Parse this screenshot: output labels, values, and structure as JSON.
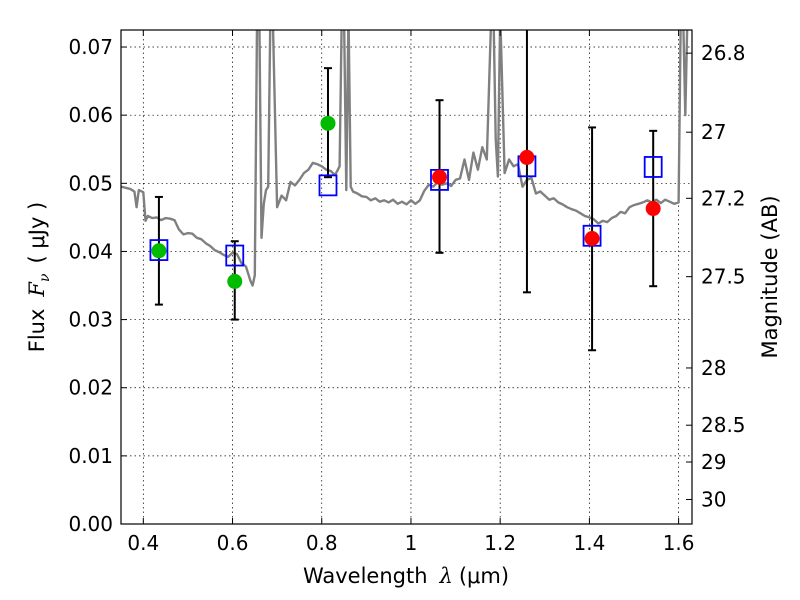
{
  "chart_data": {
    "type": "scatter",
    "xlabel_prefix": "Wavelength",
    "xlabel_var": "λ",
    "xlabel_unit": "(μm)",
    "ylabel_prefix": "Flux",
    "ylabel_var": "F",
    "ylabel_sub": "ν",
    "ylabel_unit": "( μJy )",
    "y2label": "Magnitude (AB)",
    "xlim": [
      0.35,
      1.63
    ],
    "ylim": [
      0.0,
      0.0725
    ],
    "grid": true,
    "xticks": [
      0.4,
      0.6,
      0.8,
      1.0,
      1.2,
      1.4,
      1.6
    ],
    "xtick_labels": [
      "0.4",
      "0.6",
      "0.8",
      "1",
      "1.2",
      "1.4",
      "1.6"
    ],
    "yticks": [
      0.0,
      0.01,
      0.02,
      0.03,
      0.04,
      0.05,
      0.06,
      0.07
    ],
    "ytick_labels": [
      "0.00",
      "0.01",
      "0.02",
      "0.03",
      "0.04",
      "0.05",
      "0.06",
      "0.07"
    ],
    "y2ticks": [
      {
        "label": "26.8",
        "flux": 0.0691
      },
      {
        "label": "27",
        "flux": 0.0575
      },
      {
        "label": "27.2",
        "flux": 0.0478
      },
      {
        "label": "27.5",
        "flux": 0.0363
      },
      {
        "label": "28",
        "flux": 0.0229
      },
      {
        "label": "28.5",
        "flux": 0.0145
      },
      {
        "label": "29",
        "flux": 0.0091
      },
      {
        "label": "30",
        "flux": 0.0036
      }
    ],
    "colors": {
      "model": "#808080",
      "model_mag": "#0000ff",
      "green": "#00bb00",
      "red": "#ff0000",
      "errorbar": "#000000"
    },
    "series": [
      {
        "kind": "spectrum",
        "x": [
          0.35,
          0.37,
          0.38,
          0.385,
          0.39,
          0.4,
          0.405,
          0.41,
          0.42,
          0.43,
          0.44,
          0.45,
          0.46,
          0.47,
          0.48,
          0.49,
          0.5,
          0.51,
          0.52,
          0.53,
          0.54,
          0.55,
          0.56,
          0.57,
          0.58,
          0.59,
          0.6,
          0.61,
          0.62,
          0.63,
          0.64,
          0.645,
          0.65,
          0.655,
          0.66,
          0.665,
          0.67,
          0.675,
          0.68,
          0.685,
          0.69,
          0.7,
          0.71,
          0.72,
          0.73,
          0.74,
          0.75,
          0.76,
          0.77,
          0.78,
          0.79,
          0.8,
          0.81,
          0.82,
          0.83,
          0.84,
          0.845,
          0.85,
          0.855,
          0.86,
          0.865,
          0.87,
          0.88,
          0.89,
          0.9,
          0.91,
          0.92,
          0.93,
          0.94,
          0.95,
          0.96,
          0.97,
          0.98,
          0.99,
          1.0,
          1.01,
          1.02,
          1.03,
          1.04,
          1.05,
          1.06,
          1.07,
          1.08,
          1.09,
          1.1,
          1.11,
          1.12,
          1.13,
          1.14,
          1.15,
          1.16,
          1.17,
          1.18,
          1.185,
          1.19,
          1.195,
          1.2,
          1.21,
          1.22,
          1.23,
          1.24,
          1.25,
          1.26,
          1.27,
          1.28,
          1.29,
          1.3,
          1.31,
          1.32,
          1.33,
          1.34,
          1.35,
          1.36,
          1.37,
          1.38,
          1.39,
          1.4,
          1.41,
          1.42,
          1.43,
          1.44,
          1.45,
          1.46,
          1.47,
          1.48,
          1.49,
          1.5,
          1.51,
          1.52,
          1.53,
          1.54,
          1.55,
          1.56,
          1.57,
          1.58,
          1.59,
          1.6,
          1.605,
          1.61,
          1.615,
          1.62,
          1.63
        ],
        "y": [
          0.0495,
          0.0492,
          0.0488,
          0.0465,
          0.049,
          0.0487,
          0.0445,
          0.0452,
          0.0449,
          0.045,
          0.0446,
          0.0449,
          0.0448,
          0.0446,
          0.0432,
          0.0425,
          0.0427,
          0.0426,
          0.042,
          0.0418,
          0.0412,
          0.0408,
          0.0402,
          0.0399,
          0.0395,
          0.0392,
          0.0398,
          0.0396,
          0.0383,
          0.0378,
          0.0357,
          0.035,
          0.0365,
          0.075,
          0.075,
          0.042,
          0.047,
          0.049,
          0.0495,
          0.075,
          0.075,
          0.0465,
          0.0482,
          0.0475,
          0.0502,
          0.0497,
          0.0505,
          0.0515,
          0.052,
          0.053,
          0.0528,
          0.0525,
          0.052,
          0.0518,
          0.0512,
          0.0525,
          0.075,
          0.075,
          0.049,
          0.075,
          0.0495,
          0.0488,
          0.0485,
          0.0481,
          0.048,
          0.0475,
          0.0478,
          0.0473,
          0.0475,
          0.0472,
          0.0476,
          0.047,
          0.0473,
          0.0469,
          0.0475,
          0.047,
          0.0475,
          0.0489,
          0.0498,
          0.0495,
          0.0502,
          0.0498,
          0.05,
          0.0496,
          0.0505,
          0.0507,
          0.0535,
          0.0505,
          0.0545,
          0.052,
          0.0553,
          0.0535,
          0.075,
          0.075,
          0.0565,
          0.051,
          0.075,
          0.0515,
          0.0535,
          0.0525,
          0.0528,
          0.0495,
          0.0505,
          0.0508,
          0.0485,
          0.0488,
          0.0482,
          0.0476,
          0.0478,
          0.0472,
          0.0469,
          0.0465,
          0.0462,
          0.046,
          0.0456,
          0.0452,
          0.045,
          0.0447,
          0.0441,
          0.0445,
          0.0443,
          0.0449,
          0.0452,
          0.0458,
          0.0456,
          0.0465,
          0.0468,
          0.047,
          0.0472,
          0.0475,
          0.0472,
          0.0476,
          0.0471,
          0.0476,
          0.0473,
          0.047,
          0.0472,
          0.075,
          0.075,
          0.06,
          0.075,
          0.075
        ]
      },
      {
        "kind": "model_mag",
        "x": [
          0.435,
          0.605,
          0.814,
          1.064,
          1.26,
          1.406,
          1.543
        ],
        "y": [
          0.0402,
          0.0394,
          0.0497,
          0.0505,
          0.0525,
          0.0423,
          0.0524
        ]
      },
      {
        "kind": "observed",
        "x": [
          0.435,
          0.605,
          0.814,
          1.064,
          1.26,
          1.406,
          1.543
        ],
        "y": [
          0.0401,
          0.0356,
          0.0588,
          0.0509,
          0.0538,
          0.0419,
          0.0463
        ],
        "yerr_low": [
          0.0079,
          0.0056,
          0.0079,
          0.0111,
          0.0198,
          0.0164,
          0.0114
        ],
        "yerr_high": [
          0.0079,
          0.0059,
          0.0081,
          0.0113,
          0.022,
          0.0163,
          0.0114
        ],
        "point_colors": [
          "green",
          "green",
          "green",
          "red",
          "red",
          "red",
          "red"
        ]
      }
    ]
  }
}
